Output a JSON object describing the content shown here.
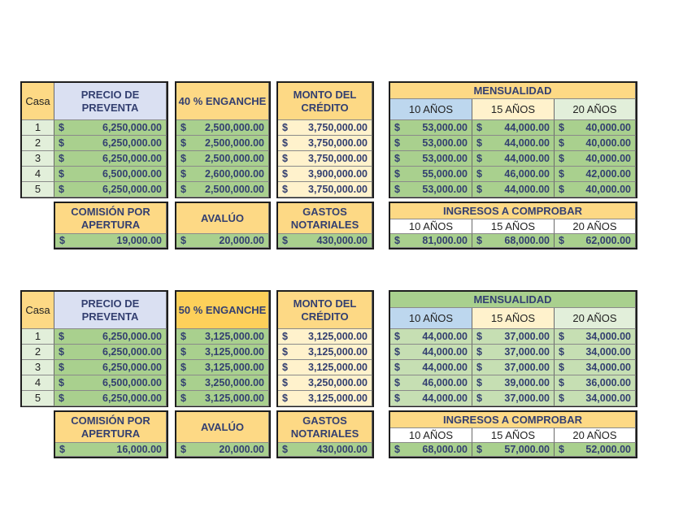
{
  "blocks": [
    {
      "casa_label": "Casa",
      "precio_label": "PRECIO DE PREVENTA",
      "enganche_label": "40 % ENGANCHE",
      "monto_label": "MONTO DEL CRÉDITO",
      "mensualidad_label": "MENSUALIDAD",
      "years": [
        "10 AÑOS",
        "15 AÑOS",
        "20 AÑOS"
      ],
      "currency": "$",
      "rows": [
        {
          "casa": "1",
          "precio": "6,250,000.00",
          "enganche": "2,500,000.00",
          "monto": "3,750,000.00",
          "m10": "53,000.00",
          "m15": "44,000.00",
          "m20": "40,000.00"
        },
        {
          "casa": "2",
          "precio": "6,250,000.00",
          "enganche": "2,500,000.00",
          "monto": "3,750,000.00",
          "m10": "53,000.00",
          "m15": "44,000.00",
          "m20": "40,000.00"
        },
        {
          "casa": "3",
          "precio": "6,250,000.00",
          "enganche": "2,500,000.00",
          "monto": "3,750,000.00",
          "m10": "53,000.00",
          "m15": "44,000.00",
          "m20": "40,000.00"
        },
        {
          "casa": "4",
          "precio": "6,500,000.00",
          "enganche": "2,600,000.00",
          "monto": "3,900,000.00",
          "m10": "55,000.00",
          "m15": "46,000.00",
          "m20": "42,000.00"
        },
        {
          "casa": "5",
          "precio": "6,250,000.00",
          "enganche": "2,500,000.00",
          "monto": "3,750,000.00",
          "m10": "53,000.00",
          "m15": "44,000.00",
          "m20": "40,000.00"
        }
      ],
      "comision_label": "COMISIÓN POR APERTURA",
      "comision": "19,000.00",
      "avaluo_label": "AVALÚO",
      "avaluo": "20,000.00",
      "gastos_label": "GASTOS NOTARIALES",
      "gastos": "430,000.00",
      "ingresos_label": "INGRESOS A COMPROBAR",
      "ingresos": [
        "81,000.00",
        "68,000.00",
        "62,000.00"
      ]
    },
    {
      "casa_label": "Casa",
      "precio_label": "PRECIO DE PREVENTA",
      "enganche_label": "50 % ENGANCHE",
      "monto_label": "MONTO DEL CRÉDITO",
      "mensualidad_label": "MENSUALIDAD",
      "years": [
        "10 AÑOS",
        "15 AÑOS",
        "20 AÑOS"
      ],
      "currency": "$",
      "rows": [
        {
          "casa": "1",
          "precio": "6,250,000.00",
          "enganche": "3,125,000.00",
          "monto": "3,125,000.00",
          "m10": "44,000.00",
          "m15": "37,000.00",
          "m20": "34,000.00"
        },
        {
          "casa": "2",
          "precio": "6,250,000.00",
          "enganche": "3,125,000.00",
          "monto": "3,125,000.00",
          "m10": "44,000.00",
          "m15": "37,000.00",
          "m20": "34,000.00"
        },
        {
          "casa": "3",
          "precio": "6,250,000.00",
          "enganche": "3,125,000.00",
          "monto": "3,125,000.00",
          "m10": "44,000.00",
          "m15": "37,000.00",
          "m20": "34,000.00"
        },
        {
          "casa": "4",
          "precio": "6,500,000.00",
          "enganche": "3,250,000.00",
          "monto": "3,250,000.00",
          "m10": "46,000.00",
          "m15": "39,000.00",
          "m20": "36,000.00"
        },
        {
          "casa": "5",
          "precio": "6,250,000.00",
          "enganche": "3,125,000.00",
          "monto": "3,125,000.00",
          "m10": "44,000.00",
          "m15": "37,000.00",
          "m20": "34,000.00"
        }
      ],
      "comision_label": "COMISIÓN POR APERTURA",
      "comision": "16,000.00",
      "avaluo_label": "AVALÚO",
      "avaluo": "20,000.00",
      "gastos_label": "GASTOS NOTARIALES",
      "gastos": "430,000.00",
      "ingresos_label": "INGRESOS A COMPROBAR",
      "ingresos": [
        "68,000.00",
        "57,000.00",
        "52,000.00"
      ]
    }
  ]
}
